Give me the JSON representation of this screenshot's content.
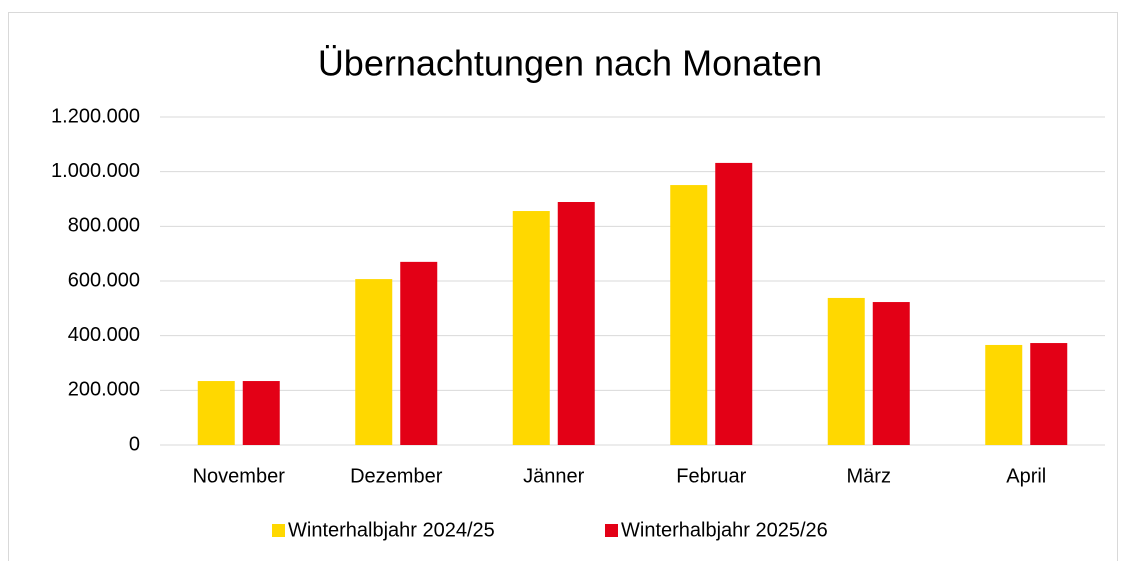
{
  "chart_data": {
    "type": "bar",
    "title": "Übernachtungen nach Monaten",
    "categories": [
      "November",
      "Dezember",
      "Jänner",
      "Februar",
      "März",
      "April"
    ],
    "series": [
      {
        "name": "Winterhalbjahr 2024/25",
        "color": "#ffd800",
        "values": [
          234000,
          607000,
          856000,
          951000,
          538000,
          366000
        ]
      },
      {
        "name": "Winterhalbjahr 2025/26",
        "color": "#e30016",
        "values": [
          234000,
          670000,
          889000,
          1032000,
          523000,
          373000
        ]
      }
    ],
    "ylim": [
      0,
      1200000
    ],
    "yticks": [
      0,
      {
        "value": 200000,
        "label": "200.000"
      },
      {
        "value": 400000,
        "label": "400.000"
      },
      {
        "value": 600000,
        "label": "600.000"
      },
      {
        "value": 800000,
        "label": "800.000"
      },
      {
        "value": 1000000,
        "label": "1.000.000"
      },
      {
        "value": 1200000,
        "label": "1.200.000"
      }
    ],
    "grid": true,
    "legend": "bottom"
  }
}
